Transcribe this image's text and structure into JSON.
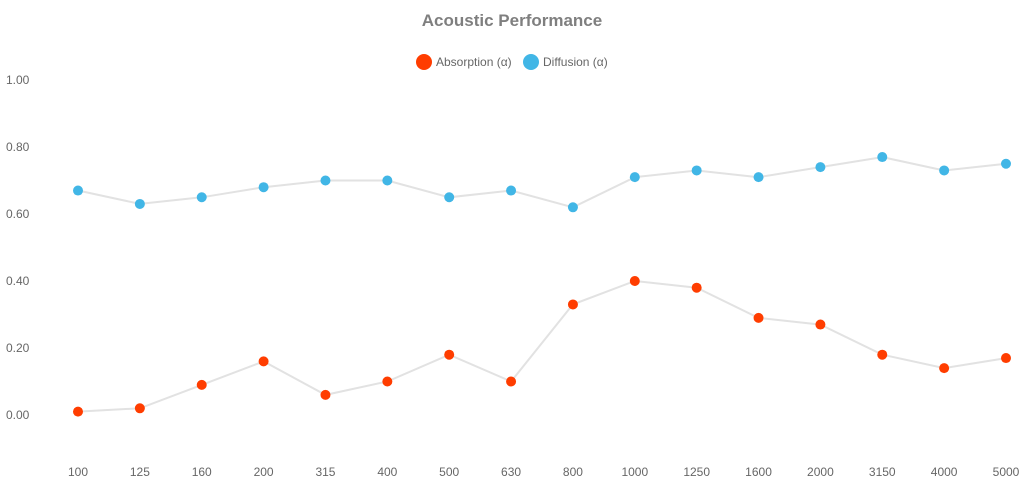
{
  "chart_data": {
    "type": "line",
    "title": "Acoustic Performance",
    "categories": [
      "100",
      "125",
      "160",
      "200",
      "315",
      "400",
      "500",
      "630",
      "800",
      "1000",
      "1250",
      "1600",
      "2000",
      "3150",
      "4000",
      "5000"
    ],
    "series": [
      {
        "name": "Absorption (α)",
        "color": "#ff3d00",
        "values": [
          0.01,
          0.02,
          0.09,
          0.16,
          0.06,
          0.1,
          0.18,
          0.1,
          0.33,
          0.4,
          0.38,
          0.29,
          0.27,
          0.18,
          0.14,
          0.17
        ]
      },
      {
        "name": "Diffusion (α)",
        "color": "#41b6e6",
        "values": [
          0.67,
          0.63,
          0.65,
          0.68,
          0.7,
          0.7,
          0.65,
          0.67,
          0.62,
          0.71,
          0.73,
          0.71,
          0.74,
          0.77,
          0.73,
          0.75
        ]
      }
    ],
    "yticks": [
      "0.00",
      "0.20",
      "0.40",
      "0.60",
      "0.80",
      "1.00"
    ],
    "ylim": [
      0,
      1
    ],
    "xlabel": "",
    "ylabel": "",
    "grid": false,
    "legend_position": "top-center",
    "line_color": "#e2e2e2"
  }
}
